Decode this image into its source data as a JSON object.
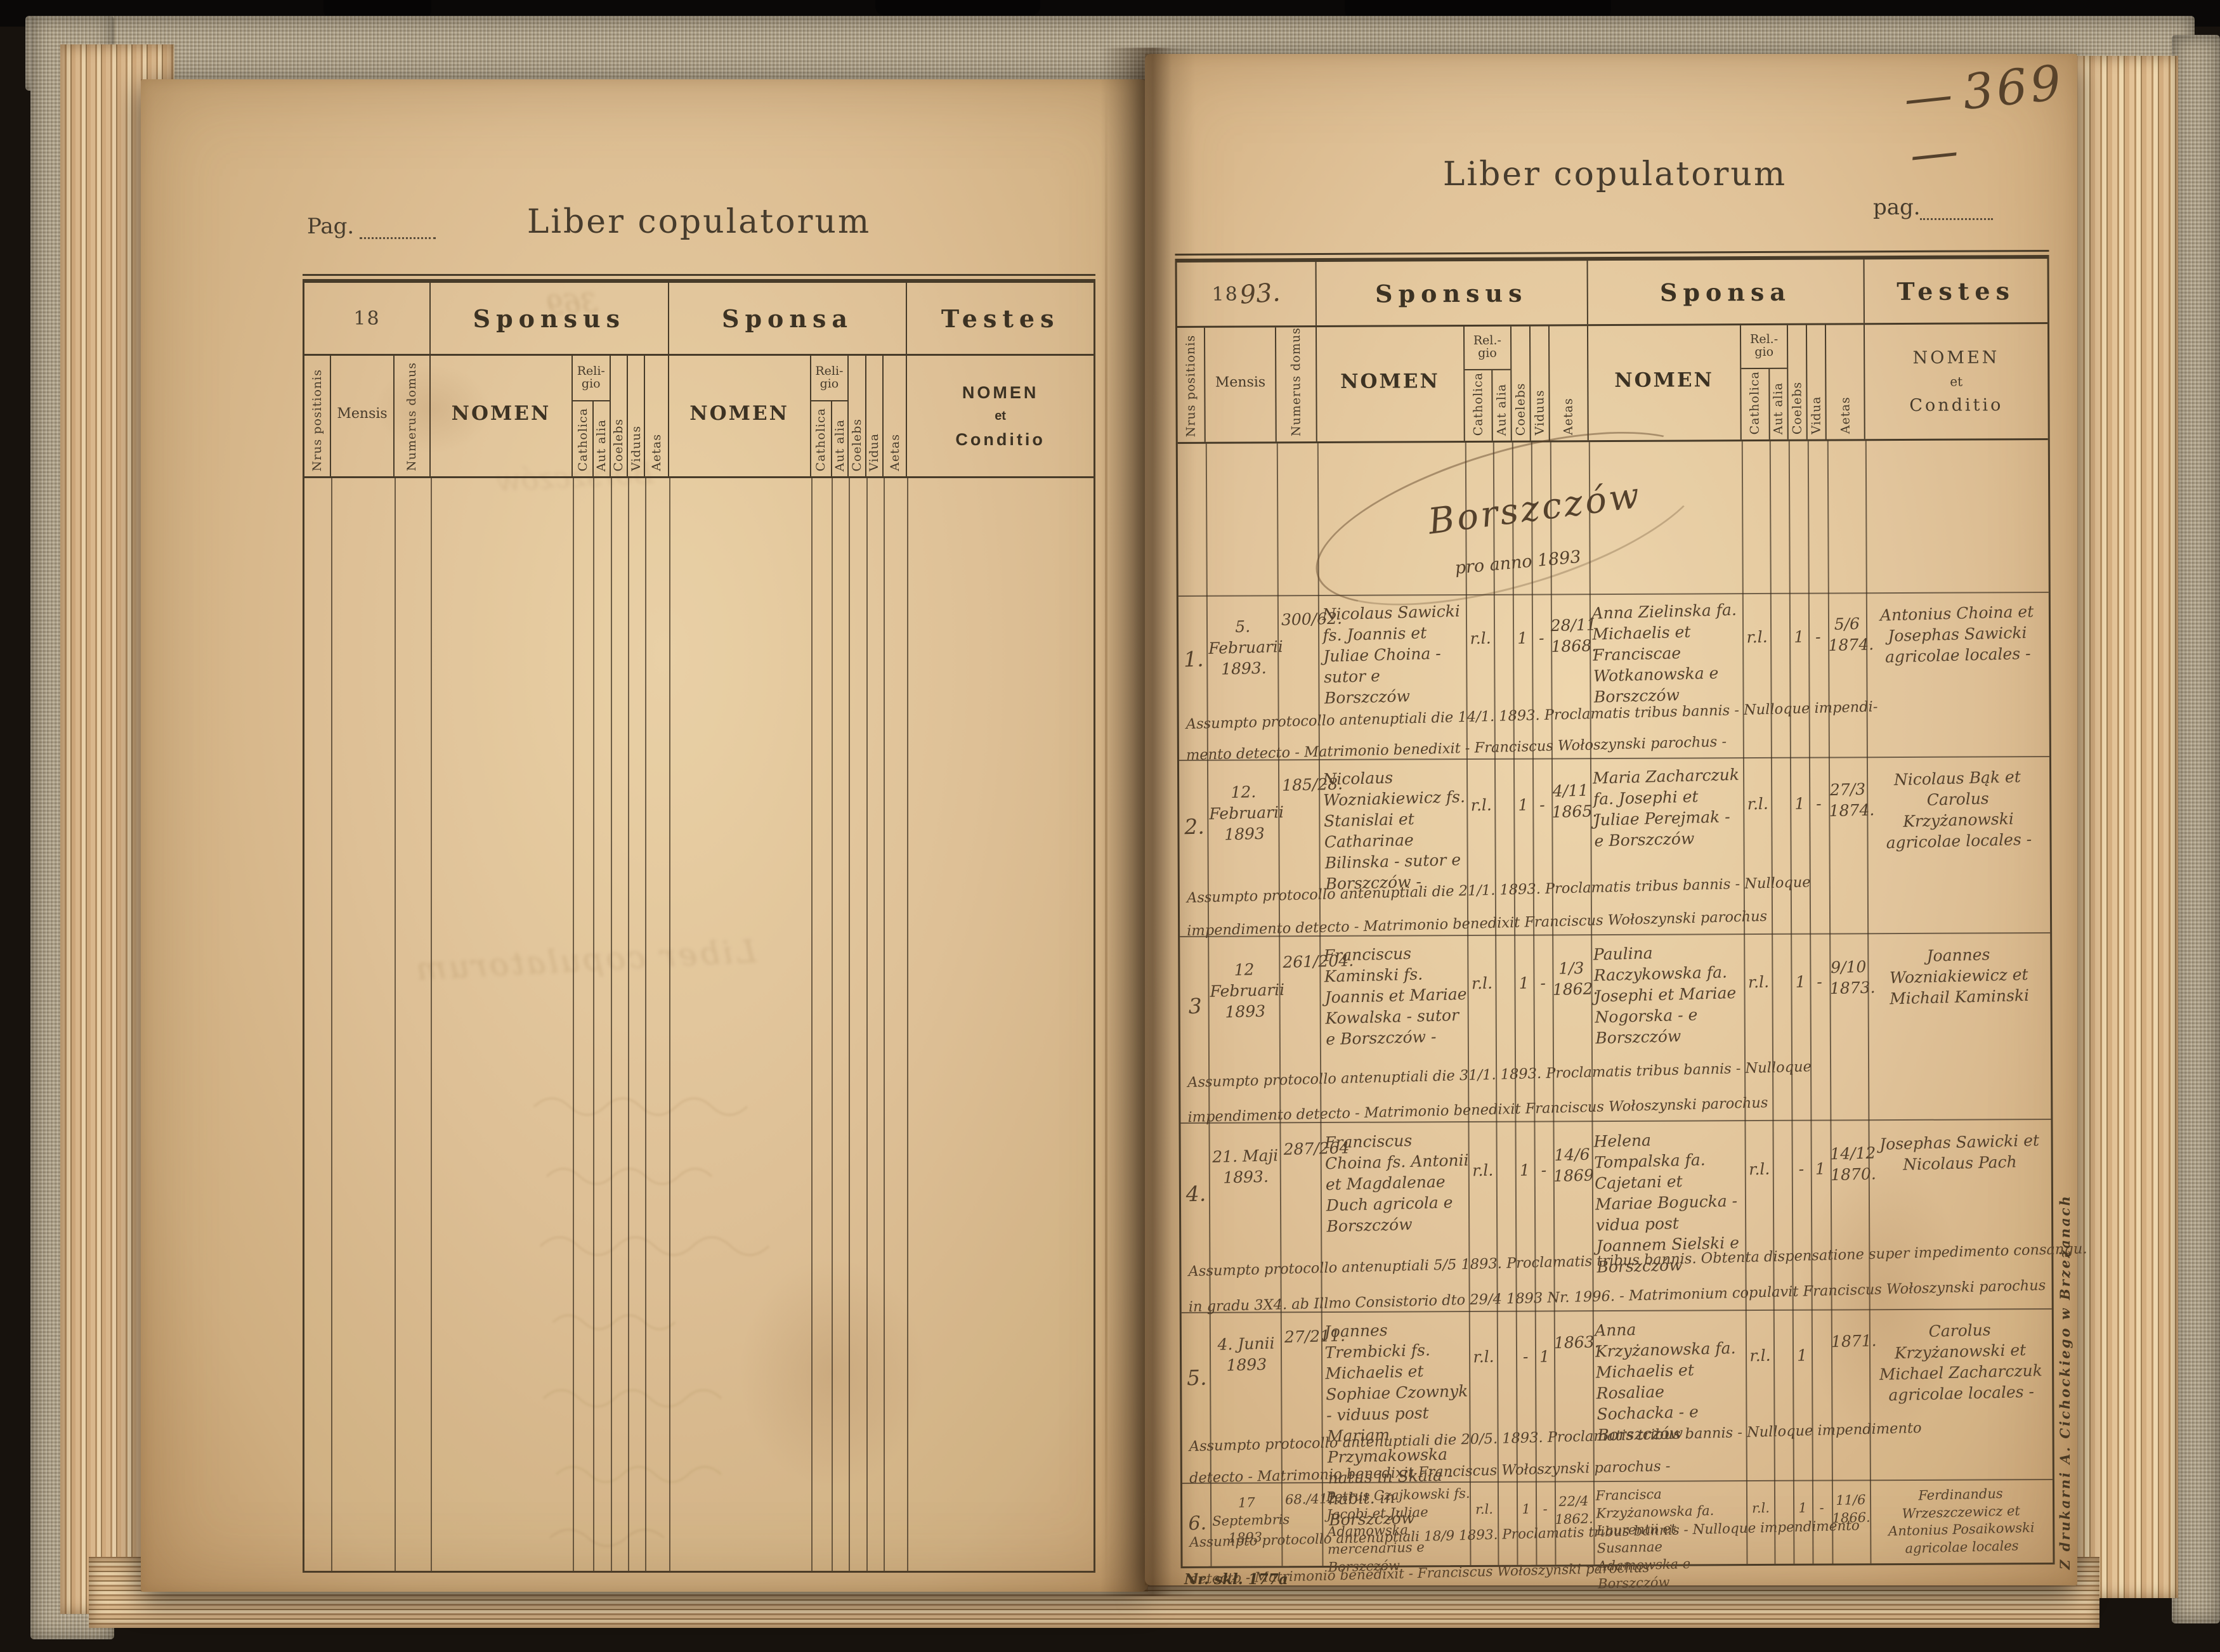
{
  "colors": {
    "background": "#17120d",
    "cover_cloth": "#b7aa91",
    "paper_left": "#dcbd92",
    "paper_right": "#e0c298",
    "print_ink": "#473b29",
    "handwriting_ink": "#54412c",
    "pencil": "#6f6049"
  },
  "left_page": {
    "pag_label": "Pag.",
    "title": "Liber copulatorum",
    "year_box": "18",
    "header": {
      "sponsus": "Sponsus",
      "sponsa": "Sponsa",
      "testes": "Testes",
      "nrus": "Nrus positionis",
      "mensis": "Mensis",
      "numerus": "Numerus domus",
      "nomen": "NOMEN",
      "religio_line1": "Reli-",
      "religio_line2": "gio",
      "catholica": "Catholica",
      "aut_alia": "Aut alia",
      "coelebs": "Coelebs",
      "viduus": "Viduus",
      "vidua": "Vidua",
      "aetas": "Aetas",
      "testes_nomen": "NOMEN",
      "testes_et": "et",
      "testes_conditio": "Conditio"
    },
    "bleedthrough": [
      "Liber copulatorum",
      "369",
      "Borszczów"
    ]
  },
  "right_page": {
    "title": "Liber copulatorum",
    "pag_label": "pag.",
    "page_number": "369",
    "page_number_dash": "—",
    "year_printed": "18",
    "year_handwritten": "93.",
    "header": {
      "sponsus": "Sponsus",
      "sponsa": "Sponsa",
      "testes": "Testes",
      "nrus": "Nrus positionis",
      "mensis": "Mensis",
      "numerus": "Numerus domus",
      "nomen": "NOMEN",
      "religio_line1": "Rel.-",
      "religio_line2": "gio",
      "catholica": "Catholica",
      "aut_alia": "Aut alia",
      "coelebs": "Coelebs",
      "viduus": "Viduus",
      "vidua": "Vidua",
      "aetas": "Aetas",
      "testes_nomen": "NOMEN",
      "testes_et": "et",
      "testes_conditio": "Conditio"
    },
    "section_heading": "Borszczów",
    "section_subheading": "pro anno 1893",
    "entries": [
      {
        "nr": "1.",
        "mensis": "5. Februarii 1893.",
        "domus": "300/62.",
        "sponsus_name": "Nicolaus Sawicki fs. Joannis et Juliae Choina - sutor e Borszczów",
        "sponsus_religio": "r.l.",
        "sponsus_coelebs": "1",
        "sponsus_viduus": "-",
        "sponsus_aetas": "28/11 1868.",
        "sponsa_name": "Anna Zielinska fa. Michaelis et Franciscae Wotkanowska e Borszczów",
        "sponsa_religio": "r.l.",
        "sponsa_coelebs": "1",
        "sponsa_vidua": "-",
        "sponsa_aetas": "5/6 1874.",
        "testes": "Antonius Choina et Josephas Sawicki agricolae locales -",
        "note_line1": "Assumpto protocollo antenuptiali die 14/1. 1893. Proclamatis tribus bannis - Nulloque impendi-",
        "note_line2": "mento detecto - Matrimonio benedixit - Franciscus Wołoszynski parochus -"
      },
      {
        "nr": "2.",
        "mensis": "12. Februarii 1893",
        "domus": "185/28.",
        "sponsus_name": "Nicolaus Wozniakiewicz fs. Stanislai et Catharinae Bilinska - sutor e Borszczów -",
        "sponsus_religio": "r.l.",
        "sponsus_coelebs": "1",
        "sponsus_viduus": "-",
        "sponsus_aetas": "4/11 1865.",
        "sponsa_name": "Maria Zacharczuk fa. Josephi et Juliae Perejmak - e Borszczów",
        "sponsa_religio": "r.l.",
        "sponsa_coelebs": "1",
        "sponsa_vidua": "-",
        "sponsa_aetas": "27/3 1874.",
        "testes": "Nicolaus Bąk et Carolus Krzyżanowski agricolae locales -",
        "note_line1": "Assumpto protocollo antenuptiali die 21/1. 1893. Proclamatis tribus bannis - Nulloque",
        "note_line2": "impendimento detecto - Matrimonio benedixit Franciscus Wołoszynski parochus"
      },
      {
        "nr": "3",
        "mensis": "12 Februarii 1893",
        "domus": "261/204.",
        "sponsus_name": "Franciscus Kaminski fs. Joannis et Mariae Kowalska - sutor e Borszczów -",
        "sponsus_religio": "r.l.",
        "sponsus_coelebs": "1",
        "sponsus_viduus": "-",
        "sponsus_aetas": "1/3 1862.",
        "sponsa_name": "Paulina Raczykowska fa. Josephi et Mariae Nogorska - e Borszczów",
        "sponsa_religio": "r.l.",
        "sponsa_coelebs": "1",
        "sponsa_vidua": "-",
        "sponsa_aetas": "9/10 1873.",
        "testes": "Joannes Wozniakiewicz et Michail Kaminski",
        "note_line1": "Assumpto protocollo antenuptiali die 31/1. 1893. Proclamatis tribus bannis - Nulloque",
        "note_line2": "impendimento detecto - Matrimonio benedixit Franciscus Wołoszynski parochus"
      },
      {
        "nr": "4.",
        "mensis": "21. Maji 1893.",
        "domus": "287/264",
        "sponsus_name": "Franciscus Choina fs. Antonii et Magdalenae Duch agricola e Borszczów",
        "sponsus_religio": "r.l.",
        "sponsus_coelebs": "1",
        "sponsus_viduus": "-",
        "sponsus_aetas": "14/6 1869",
        "sponsa_name": "Helena Tompalska fa. Cajetani et Mariae Bogucka - vidua post Joannem Sielski e Borszczów",
        "sponsa_religio": "r.l.",
        "sponsa_coelebs": "-",
        "sponsa_vidua": "1",
        "sponsa_aetas": "14/12 1870.",
        "testes": "Josephas Sawicki et Nicolaus Pach",
        "note_line1": "Assumpto protocollo antenuptiali 5/5 1893. Proclamatis tribus bannis. Obtenta dispensatione super impedimento consangu.",
        "note_line2": "in gradu 3X4. ab Illmo Consistorio dto 29/4 1893 Nr. 1996. - Matrimonium copulavit Franciscus Wołoszynski parochus"
      },
      {
        "nr": "5.",
        "mensis": "4. Junii 1893",
        "domus": "27/211.",
        "sponsus_name": "Joannes Trembicki fs. Michaelis et Sophiae Czownyk - viduus post Mariam Przymakowska natus in Skała - habit. in Borszczów",
        "sponsus_religio": "r.l.",
        "sponsus_coelebs": "-",
        "sponsus_viduus": "1",
        "sponsus_aetas": "1863.",
        "sponsa_name": "Anna Krzyżanowska fa. Michaelis et Rosaliae Sochacka - e Borszczów",
        "sponsa_religio": "r.l.",
        "sponsa_coelebs": "1",
        "sponsa_vidua": "",
        "sponsa_aetas": "1871.",
        "testes": "Carolus Krzyżanowski et Michael Zacharczuk agricolae locales -",
        "note_line1": "Assumpto protocollo antenuptiali die 20/5. 1893. Proclamatis tribus bannis - Nulloque impendimento",
        "note_line2": "detecto - Matrimonio benedixit Franciscus Wołoszynski parochus -"
      },
      {
        "nr": "6.",
        "mensis": "17 Septembris 1893.",
        "domus": "68./412.",
        "sponsus_name": "Petrus Czajkowski fs. Jacobi et Juliae Adamowska mercenarius e Borszczów",
        "sponsus_religio": "r.l.",
        "sponsus_coelebs": "1",
        "sponsus_viduus": "-",
        "sponsus_aetas": "22/4 1862.",
        "sponsa_name": "Francisca Krzyżanowska fa. Laurentii et Susannae Adamowska e Borszczów",
        "sponsa_religio": "r.l.",
        "sponsa_coelebs": "1",
        "sponsa_vidua": "-",
        "sponsa_aetas": "11/6 1866.",
        "testes": "Ferdinandus Wrzeszczewicz et Antonius Posaikowski agricolae locales",
        "note_line1": "Assumpto protocollo antenuptiali 18/9 1893. Proclamatis tribus bannis - Nulloque impendimento",
        "note_line2": "detecto - Matrimonio benedixit - Franciscus Wołoszynski parochus"
      }
    ],
    "bottom_imprint": "Nr. skł. 177a",
    "printer_imprint": "Z drukarni A. Cichockiego w Brzeżanach"
  }
}
